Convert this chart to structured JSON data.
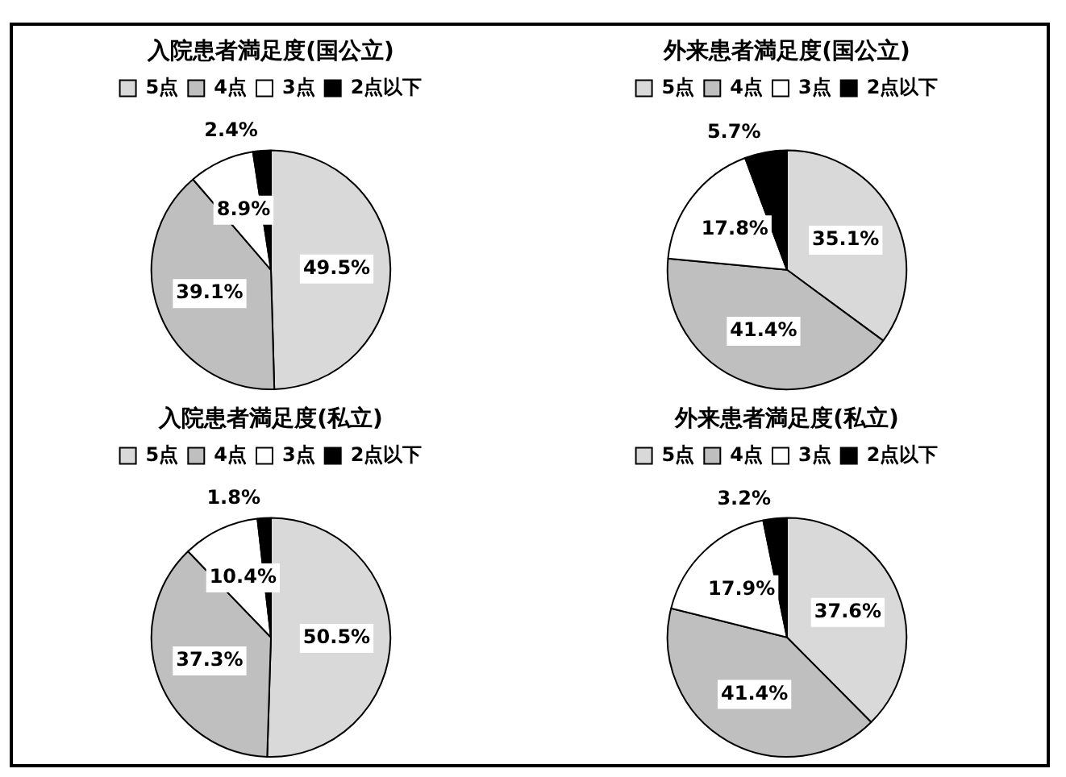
{
  "chart_data": [
    {
      "type": "pie",
      "title": "入院患者満足度(国公立)",
      "categories": [
        "5点",
        "4点",
        "3点",
        "2点以下"
      ],
      "values": [
        49.5,
        39.1,
        8.9,
        2.4
      ],
      "value_labels": [
        "49.5%",
        "39.1%",
        "8.9%",
        "2.4%"
      ],
      "colors": [
        "#d9d9d9",
        "#bfbfbf",
        "#ffffff",
        "#000000"
      ],
      "legend": "top"
    },
    {
      "type": "pie",
      "title": "外来患者満足度(国公立)",
      "categories": [
        "5点",
        "4点",
        "3点",
        "2点以下"
      ],
      "values": [
        35.1,
        41.4,
        17.8,
        5.7
      ],
      "value_labels": [
        "35.1%",
        "41.4%",
        "17.8%",
        "5.7%"
      ],
      "colors": [
        "#d9d9d9",
        "#bfbfbf",
        "#ffffff",
        "#000000"
      ],
      "legend": "top"
    },
    {
      "type": "pie",
      "title": "入院患者満足度(私立)",
      "categories": [
        "5点",
        "4点",
        "3点",
        "2点以下"
      ],
      "values": [
        50.5,
        37.3,
        10.4,
        1.8
      ],
      "value_labels": [
        "50.5%",
        "37.3%",
        "10.4%",
        "1.8%"
      ],
      "colors": [
        "#d9d9d9",
        "#bfbfbf",
        "#ffffff",
        "#000000"
      ],
      "legend": "top"
    },
    {
      "type": "pie",
      "title": "外来患者満足度(私立)",
      "categories": [
        "5点",
        "4点",
        "3点",
        "2点以下"
      ],
      "values": [
        37.6,
        41.4,
        17.9,
        3.2
      ],
      "value_labels": [
        "37.6%",
        "41.4%",
        "17.9%",
        "3.2%"
      ],
      "colors": [
        "#d9d9d9",
        "#bfbfbf",
        "#ffffff",
        "#000000"
      ],
      "legend": "top"
    }
  ]
}
